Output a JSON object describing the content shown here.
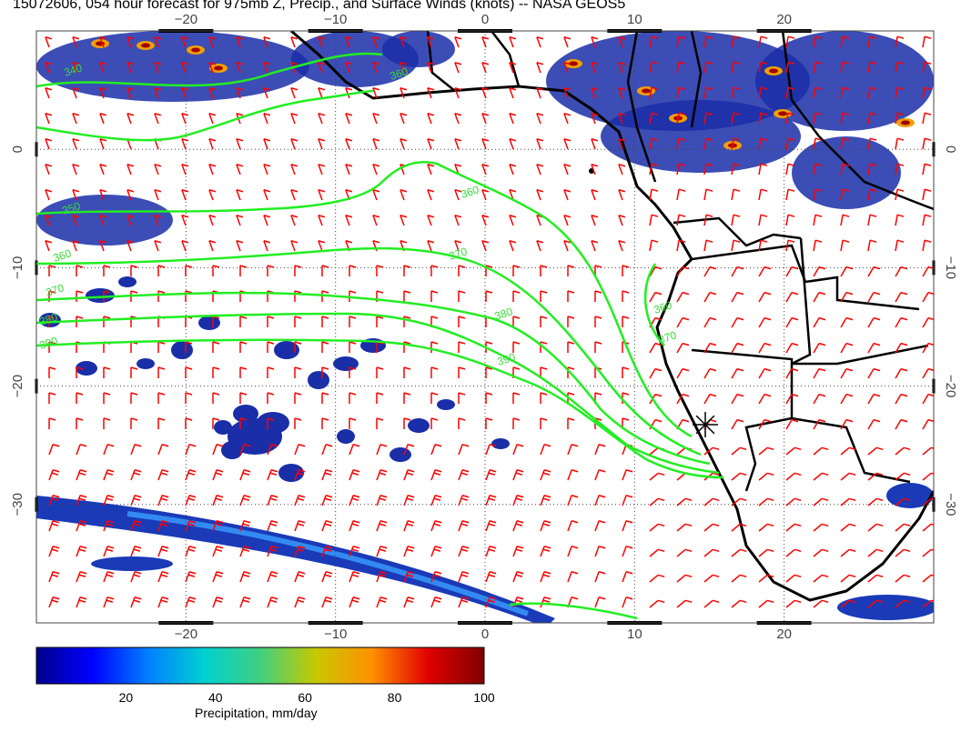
{
  "title": "15072606, 054 hour forecast for 975mb Z, Precip., and Surface Winds (knots) -- NASA GEOS5",
  "map": {
    "lon_range": [
      -30,
      30
    ],
    "lat_range": [
      -40,
      10
    ],
    "lon_ticks_top": [
      "−20",
      "−10",
      "0",
      "10",
      "20"
    ],
    "lon_ticks_bottom": [
      "−20",
      "−10",
      "0",
      "10",
      "20"
    ],
    "lat_ticks_left": [
      "0",
      "−10",
      "−20",
      "−30"
    ],
    "lat_ticks_right": [
      "0",
      "−10",
      "−20",
      "−30"
    ],
    "contour_labels": [
      "340",
      "350",
      "360",
      "370",
      "380",
      "390",
      "360",
      "370",
      "380",
      "390",
      "360",
      "370",
      "360"
    ],
    "marker": "star"
  },
  "colorbar": {
    "ticks": [
      "20",
      "40",
      "60",
      "80",
      "100"
    ],
    "label": "Precipitation, mm/day",
    "colors": [
      "#00008c",
      "#0000ff",
      "#0080ff",
      "#00d0d0",
      "#40d080",
      "#c8c800",
      "#ff9000",
      "#e00000",
      "#800000"
    ]
  },
  "colors": {
    "contour": "#22ee22",
    "barb": "#ff0000",
    "land": "#000000",
    "grid": "#444444"
  }
}
